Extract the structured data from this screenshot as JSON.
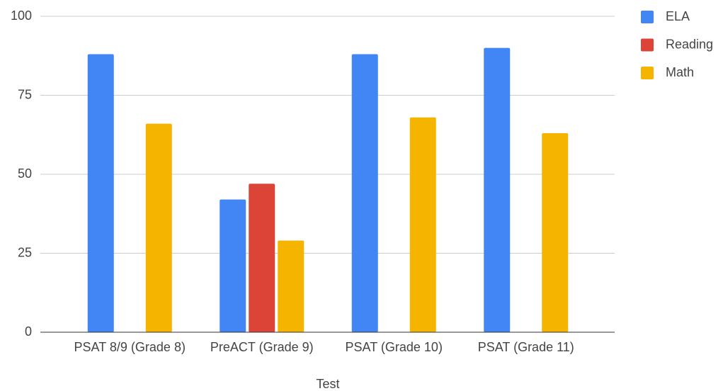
{
  "chart_data": {
    "type": "bar",
    "x_label": "Test",
    "categories": [
      "PSAT 8/9 (Grade 8)",
      "PreACT (Grade 9)",
      "PSAT (Grade 10)",
      "PSAT (Grade 11)"
    ],
    "series": [
      {
        "name": "ELA",
        "color": "#4285f4",
        "values": [
          88,
          42,
          88,
          90
        ]
      },
      {
        "name": "Reading",
        "color": "#db4437",
        "values": [
          null,
          47,
          null,
          null
        ]
      },
      {
        "name": "Math",
        "color": "#f4b400",
        "values": [
          66,
          29,
          68,
          63
        ]
      }
    ],
    "ylim": [
      0,
      100
    ],
    "yticks": [
      0,
      25,
      50,
      75,
      100
    ],
    "grid": true,
    "legend": "right"
  }
}
